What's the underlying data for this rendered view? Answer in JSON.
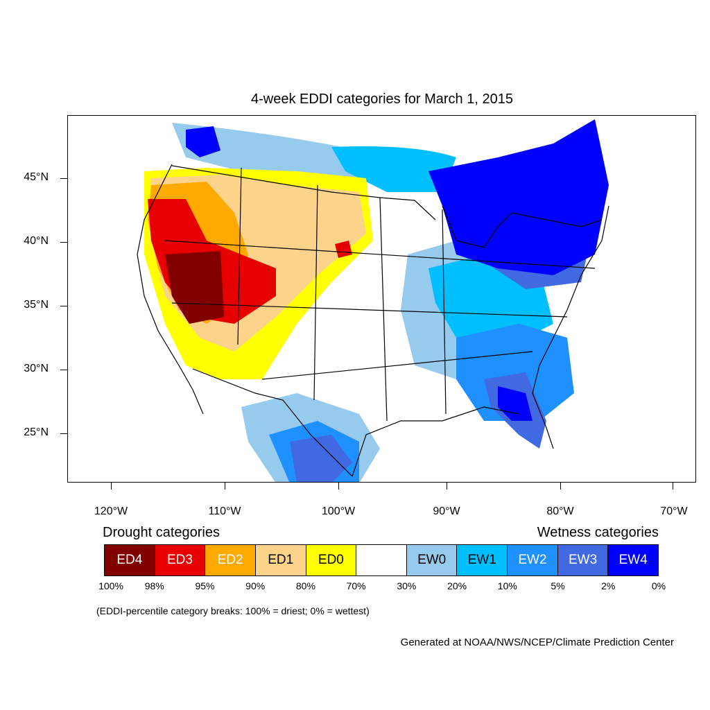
{
  "title": "4-week EDDI categories for March 1, 2015",
  "latitude_labels": [
    "45°N",
    "40°N",
    "35°N",
    "30°N",
    "25°N"
  ],
  "longitude_labels": [
    "120°W",
    "110°W",
    "100°W",
    "90°W",
    "80°W",
    "70°W"
  ],
  "legend": {
    "drought_heading": "Drought categories",
    "wetness_heading": "Wetness categories",
    "categories": [
      {
        "label": "ED4",
        "color": "#800000",
        "text_color": "#ffffff"
      },
      {
        "label": "ED3",
        "color": "#e60000",
        "text_color": "#ffffff"
      },
      {
        "label": "ED2",
        "color": "#ffaa00",
        "text_color": "#ffffff"
      },
      {
        "label": "ED1",
        "color": "#fcd38a",
        "text_color": "#000000"
      },
      {
        "label": "ED0",
        "color": "#ffff00",
        "text_color": "#000000"
      },
      {
        "label": "",
        "color": "#ffffff",
        "text_color": "#000000"
      },
      {
        "label": "EW0",
        "color": "#97cbee",
        "text_color": "#000000"
      },
      {
        "label": "EW1",
        "color": "#00bfff",
        "text_color": "#000000"
      },
      {
        "label": "EW2",
        "color": "#1e90ff",
        "text_color": "#ffffff"
      },
      {
        "label": "EW3",
        "color": "#4169e1",
        "text_color": "#ffffff"
      },
      {
        "label": "EW4",
        "color": "#0000ff",
        "text_color": "#ffffff"
      }
    ],
    "breaks": [
      "100%",
      "98%",
      "95%",
      "90%",
      "80%",
      "70%",
      "30%",
      "20%",
      "10%",
      "5%",
      "2%",
      "0%"
    ],
    "note": "(EDDI-percentile category breaks: 100% = driest; 0% = wettest)"
  },
  "credit": "Generated at NOAA/NWS/NCEP/Climate Prediction Center"
}
